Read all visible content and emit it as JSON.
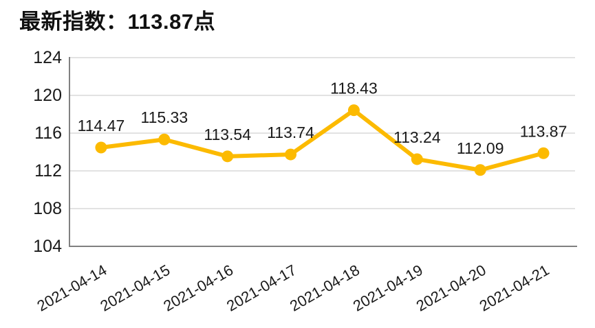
{
  "header": {
    "title": "最新指数：113.87点"
  },
  "chart_data": {
    "type": "line",
    "title": "最新指数：113.87点",
    "xlabel": "",
    "ylabel": "",
    "x": [
      "2021-04-14",
      "2021-04-15",
      "2021-04-16",
      "2021-04-17",
      "2021-04-18",
      "2021-04-19",
      "2021-04-20",
      "2021-04-21"
    ],
    "values": [
      114.47,
      115.33,
      113.54,
      113.74,
      118.43,
      113.24,
      112.09,
      113.87
    ],
    "point_labels": [
      "114.47",
      "115.33",
      "113.54",
      "113.74",
      "118.43",
      "113.24",
      "112.09",
      "113.87"
    ],
    "ylim": [
      104,
      124
    ],
    "yticks": [
      104,
      108,
      112,
      116,
      120,
      124
    ],
    "grid": "horizontal",
    "legend": "none",
    "marker": "circle",
    "x_label_rotation_deg": -30,
    "colors": {
      "line": "#FCBA00",
      "marker": "#FCBA00",
      "grid": "#D9D9D9",
      "axis": "#808080",
      "text": "#1A1A1A",
      "title": "#111111",
      "background": "#FFFFFF"
    }
  }
}
